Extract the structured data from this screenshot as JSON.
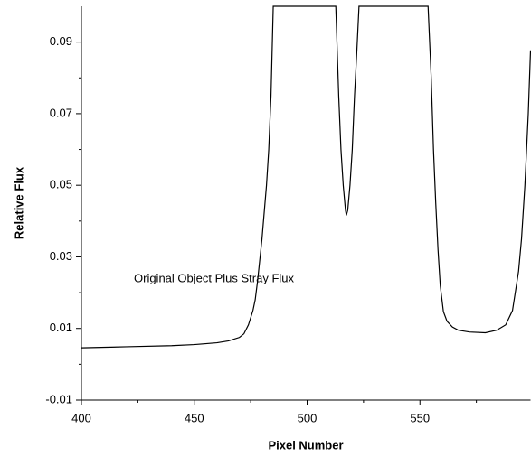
{
  "chart_data": {
    "type": "line",
    "x_label": "Pixel Number",
    "y_label": "Relative Flux",
    "annotation": "Original Object Plus Stray Flux",
    "xlim": [
      400,
      599
    ],
    "ylim": [
      -0.01,
      0.1
    ],
    "xticks": [
      400,
      450,
      500,
      550
    ],
    "xticks_minor": [
      425,
      475,
      525,
      575
    ],
    "yticks": [
      -0.01,
      0.01,
      0.03,
      0.05,
      0.07,
      0.09
    ],
    "yticks_minor": [
      0,
      0.02,
      0.04,
      0.06,
      0.08
    ],
    "series": [
      {
        "color": "#000000",
        "x": [
          400,
          420,
          440,
          450,
          460,
          465,
          470,
          472,
          474,
          476,
          477,
          478,
          480,
          482,
          483,
          484,
          485,
          512.7,
          514,
          515,
          516,
          517,
          517.4,
          518,
          519,
          520,
          521,
          522,
          523,
          553.6,
          555,
          556,
          557,
          558,
          559,
          560.4,
          562,
          564.4,
          567,
          572,
          579,
          584,
          588,
          591,
          593.7,
          595,
          596.5,
          598,
          599
        ],
        "values": [
          0.0046,
          0.0049,
          0.0052,
          0.0055,
          0.006,
          0.0065,
          0.0075,
          0.0085,
          0.011,
          0.015,
          0.018,
          0.023,
          0.035,
          0.05,
          0.06,
          0.075,
          0.1,
          0.1,
          0.075,
          0.06,
          0.05,
          0.043,
          0.0416,
          0.043,
          0.05,
          0.06,
          0.075,
          0.087,
          0.1,
          0.1,
          0.08,
          0.06,
          0.045,
          0.032,
          0.022,
          0.0147,
          0.012,
          0.0104,
          0.0095,
          0.009,
          0.0088,
          0.0095,
          0.011,
          0.015,
          0.026,
          0.035,
          0.05,
          0.07,
          0.0877
        ]
      }
    ]
  }
}
